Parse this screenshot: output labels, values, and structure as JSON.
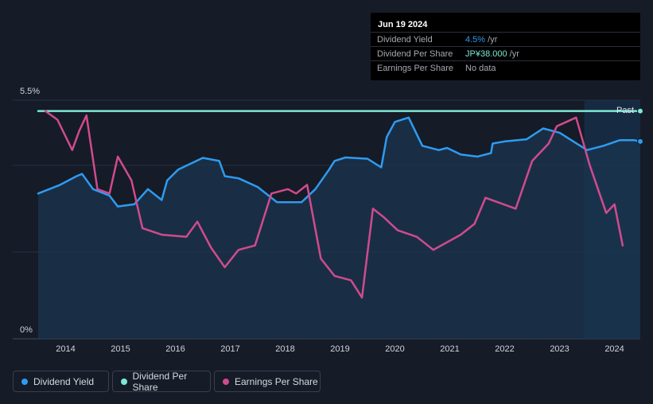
{
  "tooltip": {
    "date": "Jun 19 2024",
    "rows": [
      {
        "label": "Dividend Yield",
        "value": "4.5%",
        "unit": " /yr"
      },
      {
        "label": "Dividend Per Share",
        "value": "JP¥38.000",
        "unit": " /yr"
      },
      {
        "label": "Earnings Per Share",
        "value": "No data",
        "unit": ""
      }
    ]
  },
  "legend": [
    {
      "label": "Dividend Yield",
      "color": "#2e9bf0"
    },
    {
      "label": "Dividend Per Share",
      "color": "#7ce8d4"
    },
    {
      "label": "Earnings Per Share",
      "color": "#d04b8d"
    }
  ],
  "chart_data": {
    "type": "line",
    "y_tick_labels": [
      "5.5%",
      "0%"
    ],
    "past_label": "Past",
    "x_ticks": [
      "2014",
      "2015",
      "2016",
      "2017",
      "2018",
      "2019",
      "2020",
      "2021",
      "2022",
      "2023",
      "2024"
    ],
    "xlim": [
      2013.5,
      2024.47
    ],
    "ylim": [
      0,
      5.5
    ],
    "past_region_start": 2023.45,
    "series": [
      {
        "name": "Dividend Yield",
        "color": "#2e9bf0",
        "area": true,
        "axis": "percent",
        "x": [
          2013.5,
          2013.9,
          2014.2,
          2014.3,
          2014.5,
          2014.8,
          2014.95,
          2015.25,
          2015.5,
          2015.75,
          2015.85,
          2016.05,
          2016.5,
          2016.8,
          2016.9,
          2017.15,
          2017.5,
          2017.85,
          2018.3,
          2018.55,
          2018.8,
          2018.9,
          2019.1,
          2019.5,
          2019.75,
          2019.85,
          2020.0,
          2020.25,
          2020.5,
          2020.8,
          2020.95,
          2021.2,
          2021.5,
          2021.75,
          2021.78,
          2022.0,
          2022.4,
          2022.7,
          2023.0,
          2023.25,
          2023.5,
          2023.8,
          2024.1,
          2024.35,
          2024.47
        ],
        "y": [
          3.35,
          3.55,
          3.75,
          3.8,
          3.45,
          3.3,
          3.05,
          3.1,
          3.45,
          3.2,
          3.65,
          3.9,
          4.17,
          4.1,
          3.75,
          3.7,
          3.5,
          3.15,
          3.15,
          3.45,
          3.9,
          4.1,
          4.18,
          4.15,
          3.95,
          4.65,
          5.0,
          5.1,
          4.45,
          4.35,
          4.4,
          4.25,
          4.2,
          4.28,
          4.5,
          4.55,
          4.6,
          4.85,
          4.75,
          4.55,
          4.35,
          4.45,
          4.58,
          4.58,
          4.55
        ]
      },
      {
        "name": "Dividend Per Share",
        "color": "#7ce8d4",
        "area": false,
        "axis": "percent",
        "x": [
          2013.5,
          2024.47
        ],
        "y": [
          5.25,
          5.25
        ]
      },
      {
        "name": "Earnings Per Share",
        "color": "#d04b8d",
        "area": false,
        "axis": "percent",
        "x": [
          2013.63,
          2013.85,
          2014.12,
          2014.25,
          2014.38,
          2014.58,
          2014.8,
          2014.95,
          2015.2,
          2015.4,
          2015.75,
          2016.2,
          2016.4,
          2016.65,
          2016.9,
          2017.15,
          2017.45,
          2017.75,
          2018.05,
          2018.2,
          2018.4,
          2018.65,
          2018.9,
          2019.2,
          2019.4,
          2019.6,
          2019.8,
          2020.05,
          2020.4,
          2020.7,
          2021.2,
          2021.45,
          2021.65,
          2022.2,
          2022.5,
          2022.8,
          2022.95,
          2023.3,
          2023.55,
          2023.85,
          2024.0,
          2024.15
        ],
        "y": [
          5.25,
          5.05,
          4.35,
          4.8,
          5.15,
          3.45,
          3.35,
          4.2,
          3.65,
          2.55,
          2.4,
          2.35,
          2.7,
          2.1,
          1.65,
          2.05,
          2.15,
          3.35,
          3.45,
          3.35,
          3.55,
          1.85,
          1.45,
          1.35,
          0.95,
          3.0,
          2.8,
          2.5,
          2.35,
          2.05,
          2.4,
          2.65,
          3.25,
          3.0,
          4.1,
          4.5,
          4.9,
          5.1,
          4.0,
          2.9,
          3.1,
          2.15
        ]
      }
    ]
  }
}
